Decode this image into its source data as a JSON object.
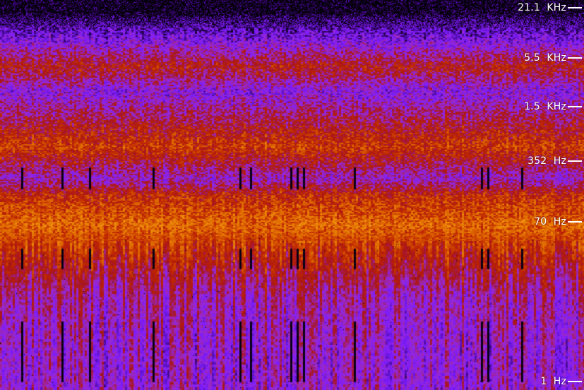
{
  "colors": {
    "background": "#000000",
    "low": "#2a0055",
    "violet": "#7a1bff",
    "purple": "#9a2ad0",
    "crimson": "#a8141c",
    "red": "#c02800",
    "orange": "#e06a00",
    "amber": "#f39a10",
    "label": "#ffffff"
  },
  "chart_data": {
    "type": "heatmap",
    "title": "",
    "xlabel": "",
    "ylabel": "",
    "yscale": "log",
    "yrange_hz": [
      1,
      21100
    ],
    "grid": false,
    "legend": "none",
    "ticks": [
      {
        "label": "21.1  KHz",
        "hz": 21100
      },
      {
        "label": "5.5  KHz",
        "hz": 5500
      },
      {
        "label": "1.5  KHz",
        "hz": 1500
      },
      {
        "label": "352  Hz",
        "hz": 352
      },
      {
        "label": "70  Hz",
        "hz": 70
      },
      {
        "label": "1  Hz",
        "hz": 1
      }
    ],
    "bands": [
      {
        "from_hz": 1,
        "to_hz": 5,
        "level": 0.38,
        "dark_streaks": true
      },
      {
        "from_hz": 5,
        "to_hz": 20,
        "level": 0.44,
        "dark_streaks": false
      },
      {
        "from_hz": 20,
        "to_hz": 35,
        "level": 0.62,
        "dark_streaks": true
      },
      {
        "from_hz": 35,
        "to_hz": 120,
        "level": 0.82,
        "dark_streaks": false
      },
      {
        "from_hz": 120,
        "to_hz": 170,
        "level": 0.66,
        "dark_streaks": false
      },
      {
        "from_hz": 170,
        "to_hz": 300,
        "level": 0.4,
        "dark_streaks": true
      },
      {
        "from_hz": 300,
        "to_hz": 900,
        "level": 0.7,
        "dark_streaks": false
      },
      {
        "from_hz": 900,
        "to_hz": 1700,
        "level": 0.5,
        "dark_streaks": false
      },
      {
        "from_hz": 1700,
        "to_hz": 3000,
        "level": 0.34,
        "dark_streaks": false
      },
      {
        "from_hz": 3000,
        "to_hz": 6500,
        "level": 0.6,
        "dark_streaks": false
      },
      {
        "from_hz": 6500,
        "to_hz": 13000,
        "level": 0.3,
        "dark_streaks": false
      },
      {
        "from_hz": 13000,
        "to_hz": 17000,
        "level": 0.14,
        "dark_streaks": false
      },
      {
        "from_hz": 17000,
        "to_hz": 21100,
        "level": 0.02,
        "dark_streaks": false
      }
    ]
  }
}
